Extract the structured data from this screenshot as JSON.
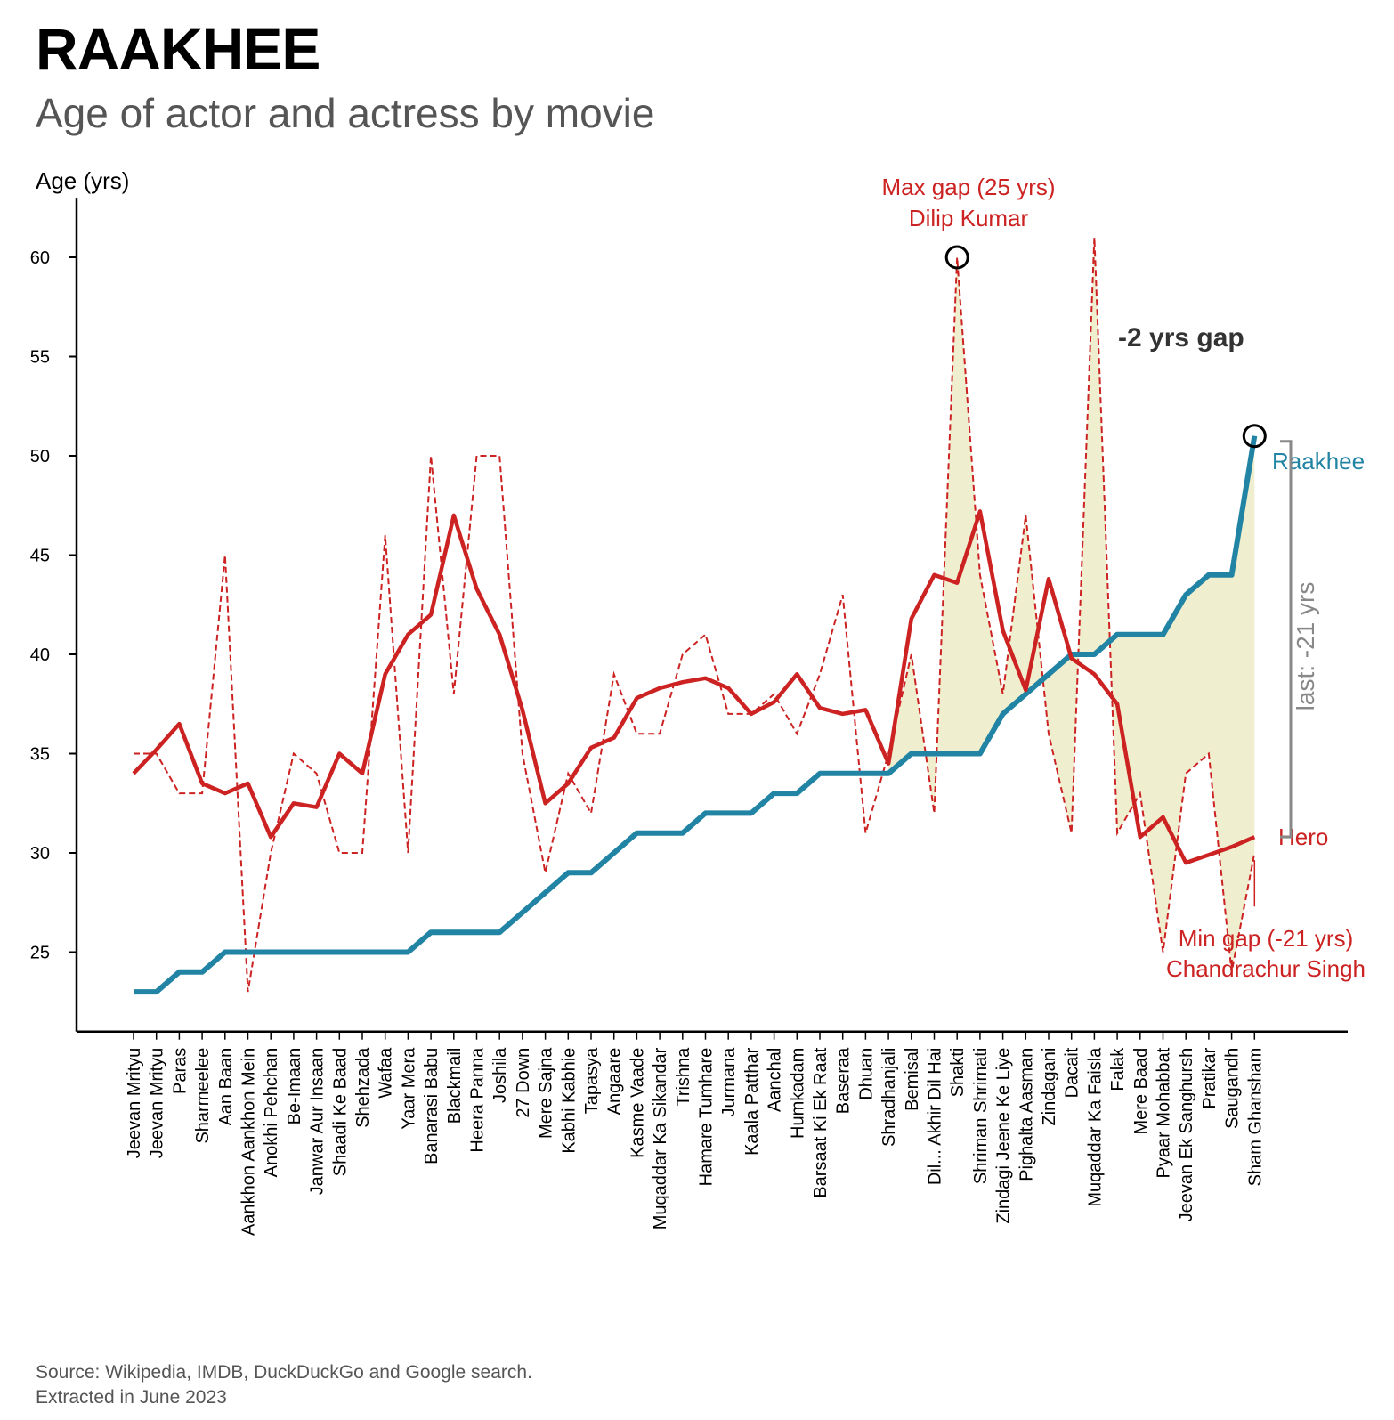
{
  "header": {
    "title": "RAAKHEE",
    "subtitle": "Age of actor and actress by movie"
  },
  "footer": {
    "line1": "Source: Wikipedia, IMDB, DuckDuckGo and Google search.",
    "line2": "Extracted in June 2023"
  },
  "colors": {
    "actress": "#2184a4",
    "hero": "#cc2222",
    "gap_fill": "#ecebc6",
    "axis": "#000000",
    "bracket": "#888888"
  },
  "chart_data": {
    "type": "line",
    "ylabel": "Age (yrs)",
    "ylim": [
      21,
      63
    ],
    "yticks": [
      25,
      30,
      35,
      40,
      45,
      50,
      55,
      60
    ],
    "categories": [
      "Jeevan Mrityu",
      "Jeevan Mrityu",
      "Paras",
      "Sharmeelee",
      "Aan Baan",
      "Aankhon Aankhon Mein",
      "Anokhi Pehchan",
      "Be-Imaan",
      "Janwar Aur Insaan",
      "Shaadi Ke Baad",
      "Shehzada",
      "Wafaa",
      "Yaar Mera",
      "Banarasi Babu",
      "Blackmail",
      "Heera Panna",
      "Joshila",
      "27 Down",
      "Mere Sajna",
      "Kabhi Kabhie",
      "Tapasya",
      "Angaare",
      "Kasme Vaade",
      "Muqaddar Ka Sikandar",
      "Trishna",
      "Hamare Tumhare",
      "Jurmana",
      "Kaala Patthar",
      "Aanchal",
      "Humkadam",
      "Barsaat Ki Ek Raat",
      "Baseraa",
      "Dhuan",
      "Shradhanjali",
      "Bemisal",
      "Dil... Akhir Dil Hai",
      "Shakti",
      "Shriman Shrimati",
      "Zindagi Jeene Ke Liye",
      "Pighalta Aasman",
      "Zindagani",
      "Dacait",
      "Muqaddar Ka Faisla",
      "Falak",
      "Mere Baad",
      "Pyaar Mohabbat",
      "Jeevan Ek Sanghursh",
      "Pratikar",
      "Saugandh",
      "Sham Ghansham"
    ],
    "series": [
      {
        "name": "Raakhee",
        "style": "actress",
        "values": [
          23,
          23,
          24,
          24,
          25,
          25,
          25,
          25,
          25,
          25,
          25,
          25,
          25,
          26,
          26,
          26,
          26,
          27,
          28,
          29,
          29,
          30,
          31,
          31,
          31,
          32,
          32,
          32,
          33,
          33,
          34,
          34,
          34,
          34,
          35,
          35,
          35,
          35,
          37,
          38,
          39,
          40,
          40,
          41,
          41,
          41,
          43,
          44,
          44,
          51
        ]
      },
      {
        "name": "Hero",
        "style": "hero-dashed",
        "values": [
          35,
          35,
          33,
          33,
          45,
          23,
          30,
          35,
          34,
          30,
          30,
          46,
          30,
          50,
          38,
          50,
          50,
          35,
          29,
          34,
          32,
          39,
          36,
          36,
          40,
          41,
          37,
          37,
          38,
          36,
          39,
          43,
          31,
          35,
          40,
          32,
          60,
          44,
          38,
          47,
          36,
          31,
          61,
          31,
          33,
          25,
          34,
          35,
          24,
          30
        ]
      },
      {
        "name": "Hero",
        "style": "hero-rolling",
        "values": [
          34,
          35.2,
          36.5,
          33.5,
          33,
          33.5,
          30.8,
          32.5,
          32.3,
          35,
          34,
          39,
          41,
          42,
          47,
          43.3,
          41,
          37.2,
          32.5,
          33.5,
          35.3,
          35.8,
          37.8,
          38.3,
          38.6,
          38.8,
          38.3,
          37,
          37.6,
          39,
          37.3,
          37,
          37.2,
          34.5,
          41.8,
          44,
          43.6,
          47.2,
          41.2,
          38.2,
          43.8,
          39.8,
          39,
          37.5,
          30.8,
          31.8,
          29.5,
          29.9,
          30.3,
          30.8
        ]
      }
    ],
    "annotations": {
      "max_gap_line1": "Max gap (25 yrs)",
      "max_gap_line2": "Dilip Kumar",
      "min_gap_line1": "Min gap (-21 yrs)",
      "min_gap_line2": "Chandrachur Singh",
      "gap_label": "-2 yrs gap",
      "last_label": "last: -21 yrs",
      "actress_label": "Raakhee",
      "hero_label": "Hero"
    }
  }
}
